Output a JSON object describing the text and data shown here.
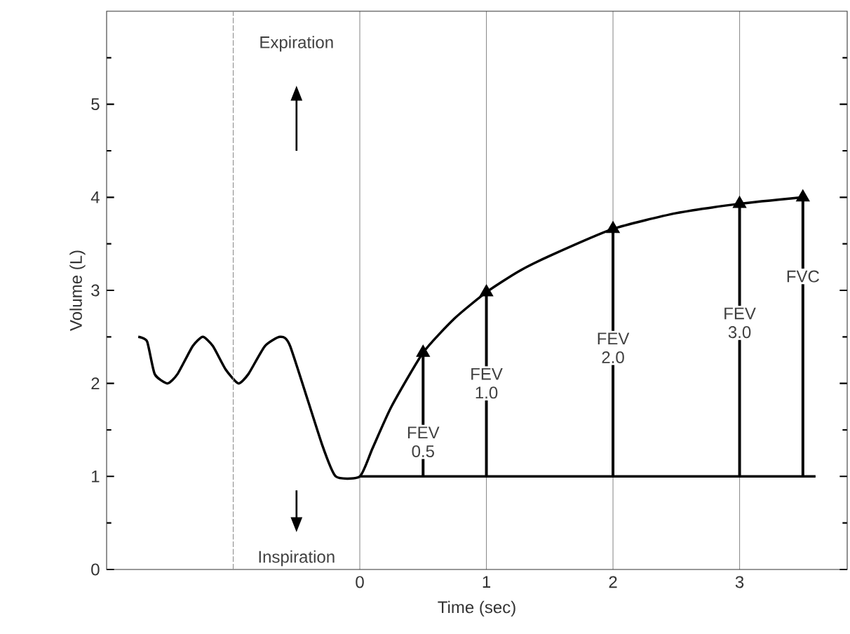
{
  "chart_data": {
    "type": "line",
    "xlabel": "Time (sec)",
    "ylabel": "Volume (L)",
    "xlim": [
      -2,
      3.85
    ],
    "ylim": [
      0,
      6
    ],
    "xticks": [
      0,
      1,
      2,
      3
    ],
    "ref_lines": [
      {
        "axis": "x",
        "value": -1,
        "color": "#8c8c8c",
        "line_style": "dashed"
      }
    ],
    "yticks": [
      0,
      {
        "value": 0.5,
        "label": null
      },
      1,
      {
        "value": 1.5,
        "label": null
      },
      2,
      {
        "value": 2.5,
        "label": null
      },
      3,
      {
        "value": 3.5,
        "label": null
      },
      4,
      {
        "value": 4.5,
        "label": null
      },
      5,
      {
        "value": 5.5,
        "label": null
      }
    ],
    "grid": "x",
    "marker": "none",
    "line_style": "solid",
    "series": [
      {
        "color": "#000000",
        "x": [
          -1.75,
          -1.68,
          -1.62,
          -1.52,
          -1.44,
          -1.32,
          -1.24,
          -1.16,
          -1.06,
          -0.96,
          -0.88,
          -0.75,
          -0.63,
          -0.55,
          -0.3,
          -0.19,
          0,
          0.1,
          0.25,
          0.5,
          0.75,
          1,
          1.25,
          1.5,
          2,
          2.5,
          3,
          3.5
        ],
        "values": [
          2.5,
          2.45,
          2.1,
          2.0,
          2.1,
          2.4,
          2.5,
          2.4,
          2.15,
          2.0,
          2.1,
          2.4,
          2.5,
          2.4,
          1.35,
          1.0,
          1.0,
          1.3,
          1.75,
          2.33,
          2.7,
          2.98,
          3.2,
          3.37,
          3.66,
          3.83,
          3.93,
          4.0
        ]
      },
      {
        "color": "#000000",
        "x": [
          0,
          3.6
        ],
        "values": [
          1,
          1
        ]
      },
      {
        "type": "bar",
        "color": "#000000",
        "x": [
          0.5,
          1,
          2,
          3,
          3.5
        ],
        "base": [
          1,
          1,
          1,
          1,
          1
        ],
        "values": [
          1.33,
          1.98,
          2.66,
          2.93,
          3.0
        ]
      },
      {
        "type": "scatter",
        "marker": "triangle",
        "color": "#000000",
        "x": [
          0.5,
          1,
          2,
          3,
          3.5
        ],
        "values": [
          2.33,
          2.98,
          3.66,
          3.93,
          4.0
        ]
      }
    ],
    "annotations": [
      "Expiration",
      "Inspiration",
      {
        "text": "FEV 0.5",
        "x": 0.5,
        "y": 1.37
      },
      {
        "text": "FEV 1.0",
        "x": 1,
        "y": 2.0
      },
      {
        "text": "FEV 2.0",
        "x": 2,
        "y": 2.38
      },
      {
        "text": "FEV 3.0",
        "x": 3,
        "y": 2.65
      },
      {
        "text": "FVC",
        "x": 3.5,
        "y": 3.15
      }
    ]
  }
}
